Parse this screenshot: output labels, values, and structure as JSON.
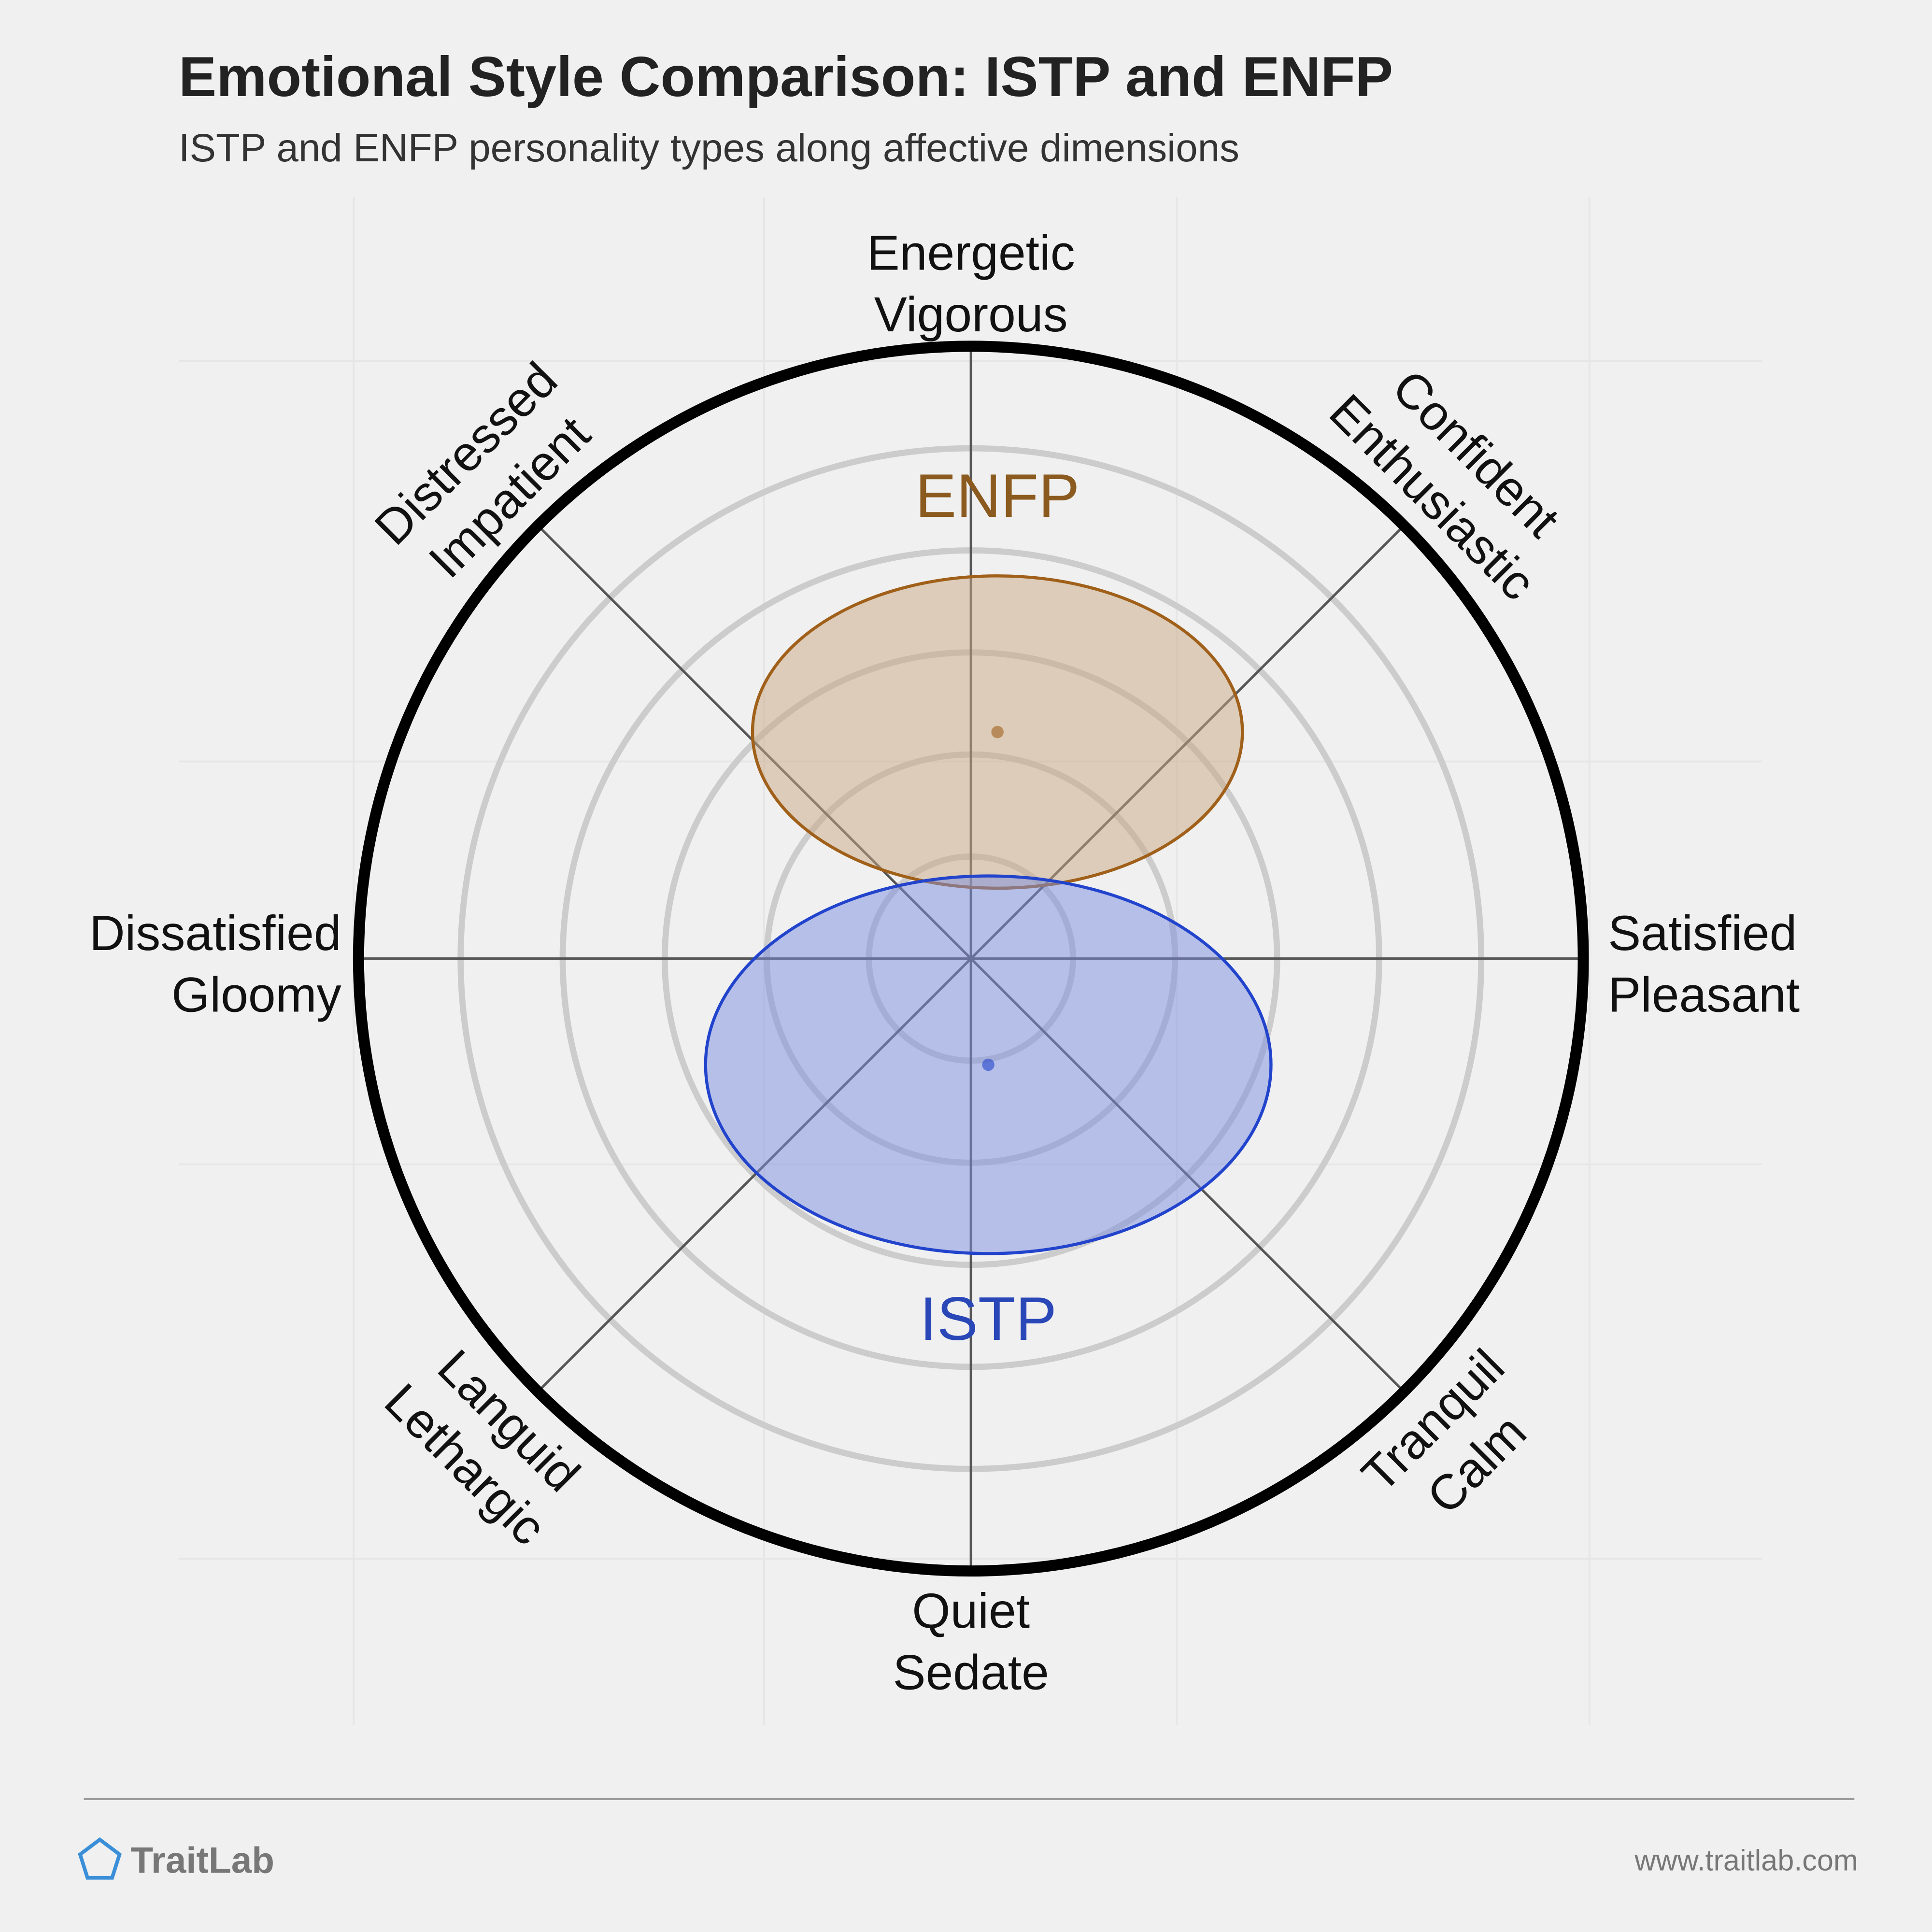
{
  "chart_data": {
    "type": "circumplex",
    "title": "Emotional Style Comparison: ISTP and ENFP",
    "subtitle": "ISTP and ENFP personality types along affective dimensions",
    "axis_labels": [
      [
        "Energetic",
        "Vigorous"
      ],
      [
        "Confident",
        "Enthusiastic"
      ],
      [
        "Satisfied",
        "Pleasant"
      ],
      [
        "Tranquil",
        "Calm"
      ],
      [
        "Quiet",
        "Sedate"
      ],
      [
        "Languid",
        "Lethargic"
      ],
      [
        "Dissatisfied",
        "Gloomy"
      ],
      [
        "Distressed",
        "Impatient"
      ]
    ],
    "rmax": 6,
    "rings": [
      1,
      2,
      3,
      4,
      5
    ],
    "series": [
      {
        "name": "ENFP",
        "color": "#a0601a",
        "label_color": "#8b5a1e",
        "fill": "#c8a882",
        "x": 0.26,
        "y": 2.22,
        "rx": 2.4,
        "ry": 1.53
      },
      {
        "name": "ISTP",
        "color": "#2244cc",
        "label_color": "#2a47b8",
        "fill": "#7b8de0",
        "x": 0.17,
        "y": -1.04,
        "rx": 2.77,
        "ry": 1.85
      }
    ]
  },
  "footer": {
    "brand": "TraitLab",
    "url": "www.traitlab.com"
  }
}
